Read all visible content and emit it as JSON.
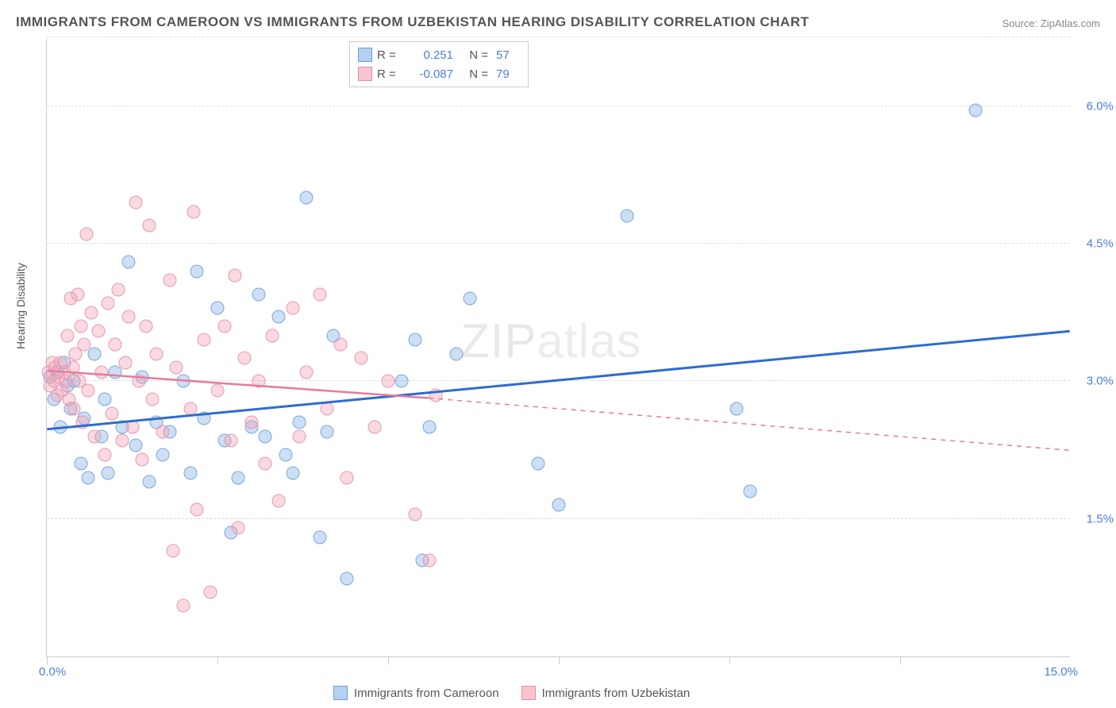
{
  "title": "IMMIGRANTS FROM CAMEROON VS IMMIGRANTS FROM UZBEKISTAN HEARING DISABILITY CORRELATION CHART",
  "source": "Source: ZipAtlas.com",
  "ylabel": "Hearing Disability",
  "watermark": "ZIPatlas",
  "chart": {
    "type": "scatter",
    "xlim": [
      0,
      15
    ],
    "ylim": [
      0,
      6.75
    ],
    "x_tick_labels": {
      "left": "0.0%",
      "right": "15.0%"
    },
    "y_ticks": [
      1.5,
      3.0,
      4.5,
      6.0
    ],
    "y_tick_labels": [
      "1.5%",
      "3.0%",
      "4.5%",
      "6.0%"
    ],
    "x_minor_ticks": [
      0,
      2.5,
      5.0,
      7.5,
      10.0,
      12.5
    ],
    "grid_color": "#dddddd",
    "axis_color": "#cccccc",
    "background_color": "#ffffff",
    "marker_size": 17,
    "series": [
      {
        "name": "Immigrants from Cameroon",
        "color_fill": "rgba(130,175,230,0.4)",
        "color_stroke": "#7aa8d8",
        "R": "0.251",
        "N": "57",
        "trend": {
          "solid": [
            [
              0,
              2.48
            ],
            [
              15,
              3.55
            ]
          ],
          "color": "#2e6cd0",
          "width": 3
        },
        "points": [
          [
            0.05,
            3.05
          ],
          [
            0.1,
            2.8
          ],
          [
            0.15,
            3.1
          ],
          [
            0.2,
            2.5
          ],
          [
            0.25,
            3.2
          ],
          [
            0.3,
            2.95
          ],
          [
            0.35,
            2.7
          ],
          [
            0.4,
            3.0
          ],
          [
            0.5,
            2.1
          ],
          [
            0.55,
            2.6
          ],
          [
            0.6,
            1.95
          ],
          [
            0.7,
            3.3
          ],
          [
            0.8,
            2.4
          ],
          [
            0.85,
            2.8
          ],
          [
            0.9,
            2.0
          ],
          [
            1.0,
            3.1
          ],
          [
            1.1,
            2.5
          ],
          [
            1.2,
            4.3
          ],
          [
            1.3,
            2.3
          ],
          [
            1.4,
            3.05
          ],
          [
            1.5,
            1.9
          ],
          [
            1.6,
            2.55
          ],
          [
            1.7,
            2.2
          ],
          [
            1.8,
            2.45
          ],
          [
            2.0,
            3.0
          ],
          [
            2.1,
            2.0
          ],
          [
            2.2,
            4.2
          ],
          [
            2.3,
            2.6
          ],
          [
            2.5,
            3.8
          ],
          [
            2.6,
            2.35
          ],
          [
            2.7,
            1.35
          ],
          [
            2.8,
            1.95
          ],
          [
            3.0,
            2.5
          ],
          [
            3.1,
            3.95
          ],
          [
            3.2,
            2.4
          ],
          [
            3.4,
            3.7
          ],
          [
            3.5,
            2.2
          ],
          [
            3.6,
            2.0
          ],
          [
            3.7,
            2.55
          ],
          [
            3.8,
            5.0
          ],
          [
            4.0,
            1.3
          ],
          [
            4.1,
            2.45
          ],
          [
            4.2,
            3.5
          ],
          [
            4.4,
            0.85
          ],
          [
            5.2,
            3.0
          ],
          [
            5.4,
            3.45
          ],
          [
            5.5,
            1.05
          ],
          [
            5.6,
            2.5
          ],
          [
            6.0,
            3.3
          ],
          [
            6.2,
            3.9
          ],
          [
            7.2,
            2.1
          ],
          [
            7.5,
            1.65
          ],
          [
            8.5,
            4.8
          ],
          [
            10.1,
            2.7
          ],
          [
            10.3,
            1.8
          ],
          [
            13.6,
            5.95
          ]
        ]
      },
      {
        "name": "Immigrants from Uzbekistan",
        "color_fill": "rgba(245,160,180,0.4)",
        "color_stroke": "#e59ab0",
        "R": "-0.087",
        "N": "79",
        "trend": {
          "solid": [
            [
              0,
              3.12
            ],
            [
              5.6,
              2.82
            ]
          ],
          "dashed": [
            [
              5.6,
              2.82
            ],
            [
              15,
              2.25
            ]
          ],
          "color": "#e87a9a",
          "width": 2.5
        },
        "points": [
          [
            0.02,
            3.1
          ],
          [
            0.05,
            2.95
          ],
          [
            0.08,
            3.2
          ],
          [
            0.1,
            3.0
          ],
          [
            0.12,
            3.15
          ],
          [
            0.15,
            2.85
          ],
          [
            0.18,
            3.05
          ],
          [
            0.2,
            3.2
          ],
          [
            0.22,
            2.9
          ],
          [
            0.25,
            3.1
          ],
          [
            0.28,
            3.0
          ],
          [
            0.3,
            3.5
          ],
          [
            0.32,
            2.8
          ],
          [
            0.35,
            3.9
          ],
          [
            0.38,
            3.15
          ],
          [
            0.4,
            2.7
          ],
          [
            0.42,
            3.3
          ],
          [
            0.45,
            3.95
          ],
          [
            0.48,
            3.0
          ],
          [
            0.5,
            3.6
          ],
          [
            0.52,
            2.55
          ],
          [
            0.55,
            3.4
          ],
          [
            0.58,
            4.6
          ],
          [
            0.6,
            2.9
          ],
          [
            0.65,
            3.75
          ],
          [
            0.7,
            2.4
          ],
          [
            0.75,
            3.55
          ],
          [
            0.8,
            3.1
          ],
          [
            0.85,
            2.2
          ],
          [
            0.9,
            3.85
          ],
          [
            0.95,
            2.65
          ],
          [
            1.0,
            3.4
          ],
          [
            1.05,
            4.0
          ],
          [
            1.1,
            2.35
          ],
          [
            1.15,
            3.2
          ],
          [
            1.2,
            3.7
          ],
          [
            1.25,
            2.5
          ],
          [
            1.3,
            4.95
          ],
          [
            1.35,
            3.0
          ],
          [
            1.4,
            2.15
          ],
          [
            1.45,
            3.6
          ],
          [
            1.5,
            4.7
          ],
          [
            1.55,
            2.8
          ],
          [
            1.6,
            3.3
          ],
          [
            1.7,
            2.45
          ],
          [
            1.8,
            4.1
          ],
          [
            1.85,
            1.15
          ],
          [
            1.9,
            3.15
          ],
          [
            2.0,
            0.55
          ],
          [
            2.1,
            2.7
          ],
          [
            2.15,
            4.85
          ],
          [
            2.2,
            1.6
          ],
          [
            2.3,
            3.45
          ],
          [
            2.4,
            0.7
          ],
          [
            2.5,
            2.9
          ],
          [
            2.6,
            3.6
          ],
          [
            2.7,
            2.35
          ],
          [
            2.75,
            4.15
          ],
          [
            2.8,
            1.4
          ],
          [
            2.9,
            3.25
          ],
          [
            3.0,
            2.55
          ],
          [
            3.1,
            3.0
          ],
          [
            3.2,
            2.1
          ],
          [
            3.3,
            3.5
          ],
          [
            3.4,
            1.7
          ],
          [
            3.6,
            3.8
          ],
          [
            3.7,
            2.4
          ],
          [
            3.8,
            3.1
          ],
          [
            4.0,
            3.95
          ],
          [
            4.1,
            2.7
          ],
          [
            4.3,
            3.4
          ],
          [
            4.4,
            1.95
          ],
          [
            4.6,
            3.25
          ],
          [
            4.8,
            2.5
          ],
          [
            5.0,
            3.0
          ],
          [
            5.4,
            1.55
          ],
          [
            5.6,
            1.05
          ],
          [
            5.7,
            2.85
          ]
        ]
      }
    ]
  },
  "legend_bottom": {
    "item1": "Immigrants from Cameroon",
    "item2": "Immigrants from Uzbekistan"
  }
}
